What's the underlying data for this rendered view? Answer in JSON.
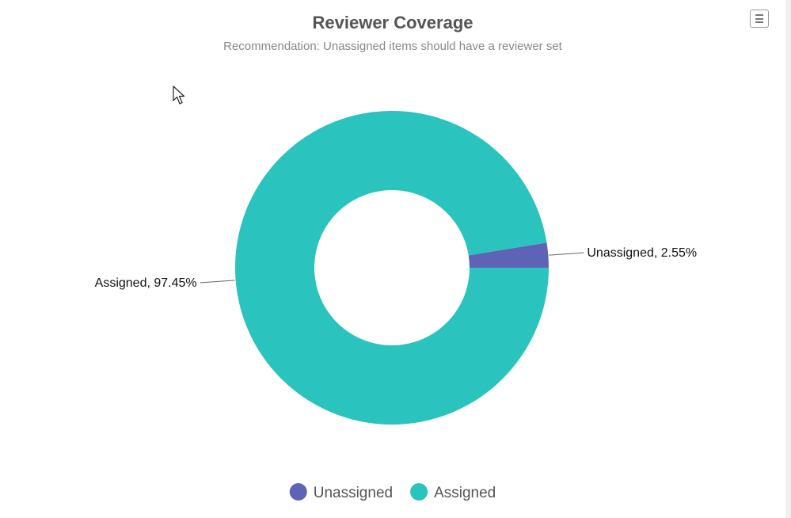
{
  "chart_data": {
    "type": "pie",
    "variant": "donut",
    "title": "Reviewer Coverage",
    "subtitle": "Recommendation: Unassigned items should have a reviewer set",
    "slices": [
      {
        "name": "Unassigned",
        "value": 2.55,
        "label": "Unassigned, 2.55%",
        "color": "#5e63b6"
      },
      {
        "name": "Assigned",
        "value": 97.45,
        "label": "Assigned, 97.45%",
        "color": "#2ac3bd"
      }
    ],
    "legend": {
      "placement": "bottom-center",
      "items": [
        "Unassigned",
        "Assigned"
      ]
    }
  },
  "toolbar": {
    "menu_icon": "hamburger-menu-icon"
  }
}
